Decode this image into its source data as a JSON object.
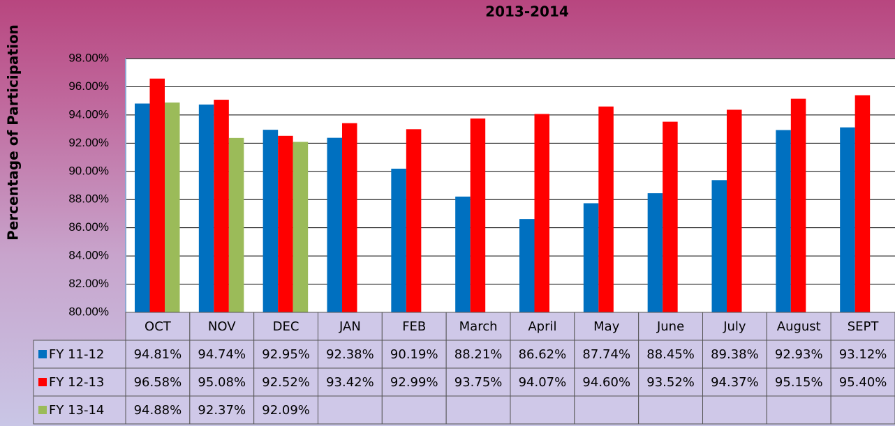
{
  "chart_data": {
    "type": "bar",
    "title": "2013-2014",
    "y_label": "Percentage of Participation",
    "categories": [
      "OCT",
      "NOV",
      "DEC",
      "JAN",
      "FEB",
      "March",
      "April",
      "May",
      "June",
      "July",
      "August",
      "SEPT"
    ],
    "series": [
      {
        "name": "FY 11-12",
        "color": "#0070c0",
        "values": [
          94.81,
          94.74,
          92.95,
          92.38,
          90.19,
          88.21,
          86.62,
          87.74,
          88.45,
          89.38,
          92.93,
          93.12
        ],
        "value_labels": [
          "94.81%",
          "94.74%",
          "92.95%",
          "92.38%",
          "90.19%",
          "88.21%",
          "86.62%",
          "87.74%",
          "88.45%",
          "89.38%",
          "92.93%",
          "93.12%"
        ]
      },
      {
        "name": "FY 12-13",
        "color": "#ff0000",
        "values": [
          96.58,
          95.08,
          92.52,
          93.42,
          92.99,
          93.75,
          94.07,
          94.6,
          93.52,
          94.37,
          95.15,
          95.4
        ],
        "value_labels": [
          "96.58%",
          "95.08%",
          "92.52%",
          "93.42%",
          "92.99%",
          "93.75%",
          "94.07%",
          "94.60%",
          "93.52%",
          "94.37%",
          "95.15%",
          "95.40%"
        ]
      },
      {
        "name": "FY 13-14",
        "color": "#9bbb59",
        "values": [
          94.88,
          92.37,
          92.09,
          null,
          null,
          null,
          null,
          null,
          null,
          null,
          null,
          null
        ],
        "value_labels": [
          "94.88%",
          "92.37%",
          "92.09%",
          null,
          null,
          null,
          null,
          null,
          null,
          null,
          null,
          null
        ]
      }
    ],
    "ylim": [
      80,
      98
    ],
    "yticks": [
      {
        "value": 80,
        "label": "80.00%"
      },
      {
        "value": 82,
        "label": "82.00%"
      },
      {
        "value": 84,
        "label": "84.00%"
      },
      {
        "value": 86,
        "label": "86.00%"
      },
      {
        "value": 88,
        "label": "88.00%"
      },
      {
        "value": 90,
        "label": "90.00%"
      },
      {
        "value": 92,
        "label": "92.00%"
      },
      {
        "value": 94,
        "label": "94.00%"
      },
      {
        "value": 96,
        "label": "96.00%"
      },
      {
        "value": 98,
        "label": "98.00%"
      }
    ],
    "grid": true
  }
}
